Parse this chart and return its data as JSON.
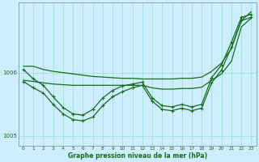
{
  "xlabel": "Graphe pression niveau de la mer (hPa)",
  "background_color": "#cceeff",
  "grid_color": "#99ddcc",
  "line_color": "#1a6b1a",
  "x": [
    0,
    1,
    2,
    3,
    4,
    5,
    6,
    7,
    8,
    9,
    10,
    11,
    12,
    13,
    14,
    15,
    16,
    17,
    18,
    19,
    20,
    21,
    22,
    23
  ],
  "lineA": [
    1006.1,
    1006.1,
    1006.05,
    1006.02,
    1006.0,
    1005.98,
    1005.96,
    1005.94,
    1005.93,
    1005.92,
    1005.91,
    1005.91,
    1005.9,
    1005.9,
    1005.9,
    1005.9,
    1005.91,
    1005.91,
    1005.93,
    1006.02,
    1006.15,
    1006.38,
    1006.82,
    1006.96
  ],
  "lineB": [
    1005.88,
    1005.86,
    1005.84,
    1005.82,
    1005.81,
    1005.8,
    1005.8,
    1005.8,
    1005.8,
    1005.8,
    1005.8,
    1005.8,
    1005.8,
    1005.76,
    1005.74,
    1005.74,
    1005.75,
    1005.75,
    1005.77,
    1005.88,
    1005.98,
    1006.18,
    1006.72,
    1006.86
  ],
  "lineC": [
    1006.05,
    1005.9,
    1005.8,
    1005.62,
    1005.45,
    1005.35,
    1005.33,
    1005.42,
    1005.6,
    1005.72,
    1005.79,
    1005.82,
    1005.85,
    1005.6,
    1005.48,
    1005.46,
    1005.5,
    1005.46,
    1005.5,
    1005.92,
    1006.12,
    1006.48,
    1006.87,
    1006.92
  ],
  "lineD": [
    1005.86,
    1005.76,
    1005.68,
    1005.5,
    1005.35,
    1005.26,
    1005.24,
    1005.3,
    1005.48,
    1005.62,
    1005.7,
    1005.76,
    1005.8,
    1005.55,
    1005.42,
    1005.4,
    1005.44,
    1005.4,
    1005.44,
    1005.84,
    1006.04,
    1006.4,
    1006.82,
    1006.87
  ],
  "ylim": [
    1004.85,
    1007.1
  ],
  "yticks": [
    1005.0,
    1006.0
  ],
  "ytick_labels": [
    "1005",
    "1006"
  ]
}
